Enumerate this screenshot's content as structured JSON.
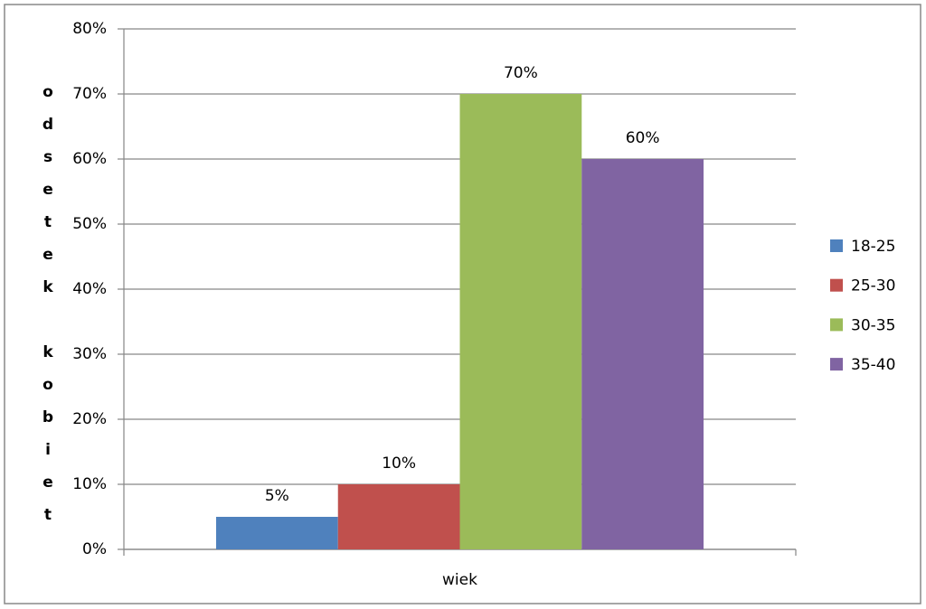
{
  "chart_data": {
    "type": "bar",
    "y_label": "odsetek kobiet",
    "categories": [
      "wiek"
    ],
    "series": [
      {
        "name": "18-25",
        "color": "#4f81bd",
        "values": [
          5
        ],
        "value_labels": [
          "5%"
        ]
      },
      {
        "name": "25-30",
        "color": "#c0504d",
        "values": [
          10
        ],
        "value_labels": [
          "10%"
        ]
      },
      {
        "name": "30-35",
        "color": "#9bbb59",
        "values": [
          70
        ],
        "value_labels": [
          "70%"
        ]
      },
      {
        "name": "35-40",
        "color": "#8064a2",
        "values": [
          60
        ],
        "value_labels": [
          "60%"
        ]
      }
    ],
    "ylim": [
      0,
      80
    ],
    "yticks": [
      {
        "value": 0,
        "label": "0%"
      },
      {
        "value": 10,
        "label": "10%"
      },
      {
        "value": 20,
        "label": "20%"
      },
      {
        "value": 30,
        "label": "30%"
      },
      {
        "value": 40,
        "label": "40%"
      },
      {
        "value": 50,
        "label": "50%"
      },
      {
        "value": 60,
        "label": "60%"
      },
      {
        "value": 70,
        "label": "70%"
      },
      {
        "value": 80,
        "label": "80%"
      }
    ],
    "grid": true,
    "legend": "right"
  }
}
